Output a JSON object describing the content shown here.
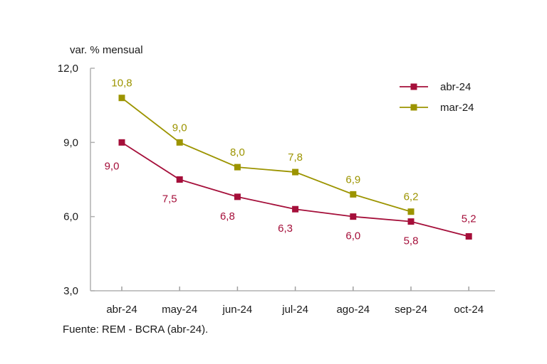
{
  "chart_data": {
    "type": "line",
    "title": "",
    "ylabel": "var. % mensual",
    "xlabel": "",
    "ylim": [
      3.0,
      12.0
    ],
    "yticks": [
      "3,0",
      "6,0",
      "9,0",
      "12,0"
    ],
    "ytick_values": [
      3,
      6,
      9,
      12
    ],
    "categories": [
      "abr-24",
      "may-24",
      "jun-24",
      "jul-24",
      "ago-24",
      "sep-24",
      "oct-24"
    ],
    "series": [
      {
        "name": "abr-24",
        "color": "#a50f3a",
        "values": [
          9.0,
          7.5,
          6.8,
          6.3,
          6.0,
          5.8,
          5.2
        ],
        "labels": [
          "9,0",
          "7,5",
          "6,8",
          "6,3",
          "6,0",
          "5,8",
          "5,2"
        ]
      },
      {
        "name": "mar-24",
        "color": "#9c9400",
        "values": [
          10.8,
          9.0,
          8.0,
          7.8,
          6.9,
          6.2,
          null
        ],
        "labels": [
          "10,8",
          "9,0",
          "8,0",
          "7,8",
          "6,9",
          "6,2",
          null
        ]
      }
    ],
    "legend": {
      "placement": "top-right",
      "entries": [
        "abr-24",
        "mar-24"
      ]
    },
    "grid": false,
    "source": "Fuente: REM - BCRA (abr-24)."
  }
}
